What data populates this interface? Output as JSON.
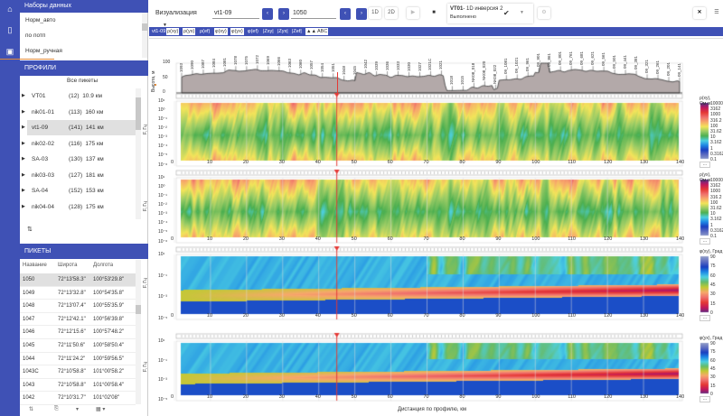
{
  "nav": {
    "icons": [
      "home-icon",
      "map-icon",
      "document-icon"
    ]
  },
  "datasets": {
    "title": "Наборы данных",
    "items": [
      "Норм_авто",
      "по потп",
      "Норм_ручная"
    ]
  },
  "profiles": {
    "title": "ПРОФИЛИ",
    "all_label": "Все пикеты",
    "items": [
      {
        "name": "VT01",
        "count": "(12)",
        "len": "10.9 км"
      },
      {
        "name": "nik01-01",
        "count": "(113)",
        "len": "160 км"
      },
      {
        "name": "vt1-09",
        "count": "(141)",
        "len": "141 км",
        "selected": true
      },
      {
        "name": "nik02-02",
        "count": "(116)",
        "len": "175 км"
      },
      {
        "name": "SA-03",
        "count": "(130)",
        "len": "137 км"
      },
      {
        "name": "nik03-03",
        "count": "(127)",
        "len": "181 км"
      },
      {
        "name": "SA-04",
        "count": "(152)",
        "len": "153 км"
      },
      {
        "name": "nik04-04",
        "count": "(128)",
        "len": "175 км"
      }
    ]
  },
  "pickets": {
    "title": "ПИКЕТЫ",
    "columns": [
      "Название",
      "Широта",
      "Долгота"
    ],
    "rows": [
      [
        "1050",
        "72°13'58.3\"",
        "100°53'29.8\""
      ],
      [
        "1049",
        "72°13'32.8\"",
        "100°54'35.8\""
      ],
      [
        "1048",
        "72°13'07.4\"",
        "100°55'35.9\""
      ],
      [
        "1047",
        "72°12'42.1\"",
        "100°56'39.8\""
      ],
      [
        "1046",
        "72°12'15.6\"",
        "100°57'48.2\""
      ],
      [
        "1045",
        "72°11'50.6\"",
        "100°58'50.4\""
      ],
      [
        "1044",
        "72°11'24.2\"",
        "100°59'56.5\""
      ],
      [
        "1043C",
        "72°10'58.8\"",
        "101°00'58.2\""
      ],
      [
        "1043",
        "72°10'58.8\"",
        "101°00'58.4\""
      ],
      [
        "1042",
        "72°10'31.7\"",
        "101°02'08\""
      ]
    ]
  },
  "toolbar": {
    "mode": "Визуализация",
    "profile": "vt1-09",
    "picket": "1050",
    "btn_1d": "1D",
    "btn_2d": "2D",
    "status_title": "VT01",
    "status_sub": "- 1D инверсия 2",
    "status_state": "Выполнено"
  },
  "tabs": [
    "vt1-09",
    "ρ(xy)",
    "ρ(yx)",
    "ρ(ef)",
    "φ(xy)",
    "φ(yx)",
    "φ(ef)",
    "|Zxy|",
    "|Zyx|",
    "|Zef|",
    "▲▲",
    "ABC"
  ],
  "elevation": {
    "ylabel": "Высота, м",
    "yticks": [
      "100",
      "50",
      "0"
    ],
    "labels": [
      "1093",
      "1090",
      "1087",
      "1084",
      "1081",
      "1078",
      "1075",
      "1072",
      "1069",
      "1066",
      "1063",
      "1060",
      "1057",
      "1054",
      "1051",
      "1048",
      "1045",
      "1042",
      "1039",
      "1036",
      "1033",
      "1030",
      "1027",
      "1021C",
      "1021",
      "1018",
      "1015",
      "NK08_018",
      "NK08_020",
      "NK08_022",
      "09_1081",
      "09_1021",
      "09_961",
      "09_901",
      "09_861",
      "09_801",
      "09_761",
      "09_681",
      "09_621",
      "09_561",
      "09_501",
      "09_441",
      "09_381",
      "09_321",
      "09_261",
      "09_201",
      "09_141"
    ]
  },
  "panels": [
    {
      "cb_title": "ρ(xy), Ом·м",
      "cb_labels": [
        "10000",
        "3162",
        "1000",
        "316.2",
        "100",
        "31.62",
        "10",
        "3.162",
        "1",
        "0.3162",
        "0.1"
      ],
      "type": "rho"
    },
    {
      "cb_title": "ρ(yx), Ом·м",
      "cb_labels": [
        "10000",
        "3162",
        "1000",
        "316.2",
        "100",
        "31.62",
        "10",
        "3.162",
        "1",
        "0.3162",
        "0.1"
      ],
      "type": "rho"
    },
    {
      "cb_title": "φ(xy), Град",
      "cb_labels": [
        "90",
        "75",
        "60",
        "45",
        "30",
        "15",
        "0"
      ],
      "type": "phi"
    },
    {
      "cb_title": "φ(yx), Град",
      "cb_labels": [
        "90",
        "75",
        "60",
        "45",
        "30",
        "15",
        "0"
      ],
      "type": "phi"
    }
  ],
  "axis": {
    "ylabel": "F, Гц",
    "yticks": [
      "10¹",
      "10⁰",
      "10⁻¹",
      "10⁻²",
      "10⁻³",
      "10⁻⁴",
      "10⁻⁵",
      "10⁻⁶"
    ],
    "xticks": [
      "0",
      "10",
      "20",
      "30",
      "40",
      "50",
      "60",
      "70",
      "80",
      "90",
      "100",
      "110",
      "120",
      "130",
      "140"
    ],
    "xlabel": "Дистанция по профилю, км",
    "more": "..."
  },
  "cursor_km": 45,
  "colors": {
    "accent": "#3f51b5",
    "cursor": "#e53935",
    "terrain": "#b3a9a9"
  }
}
